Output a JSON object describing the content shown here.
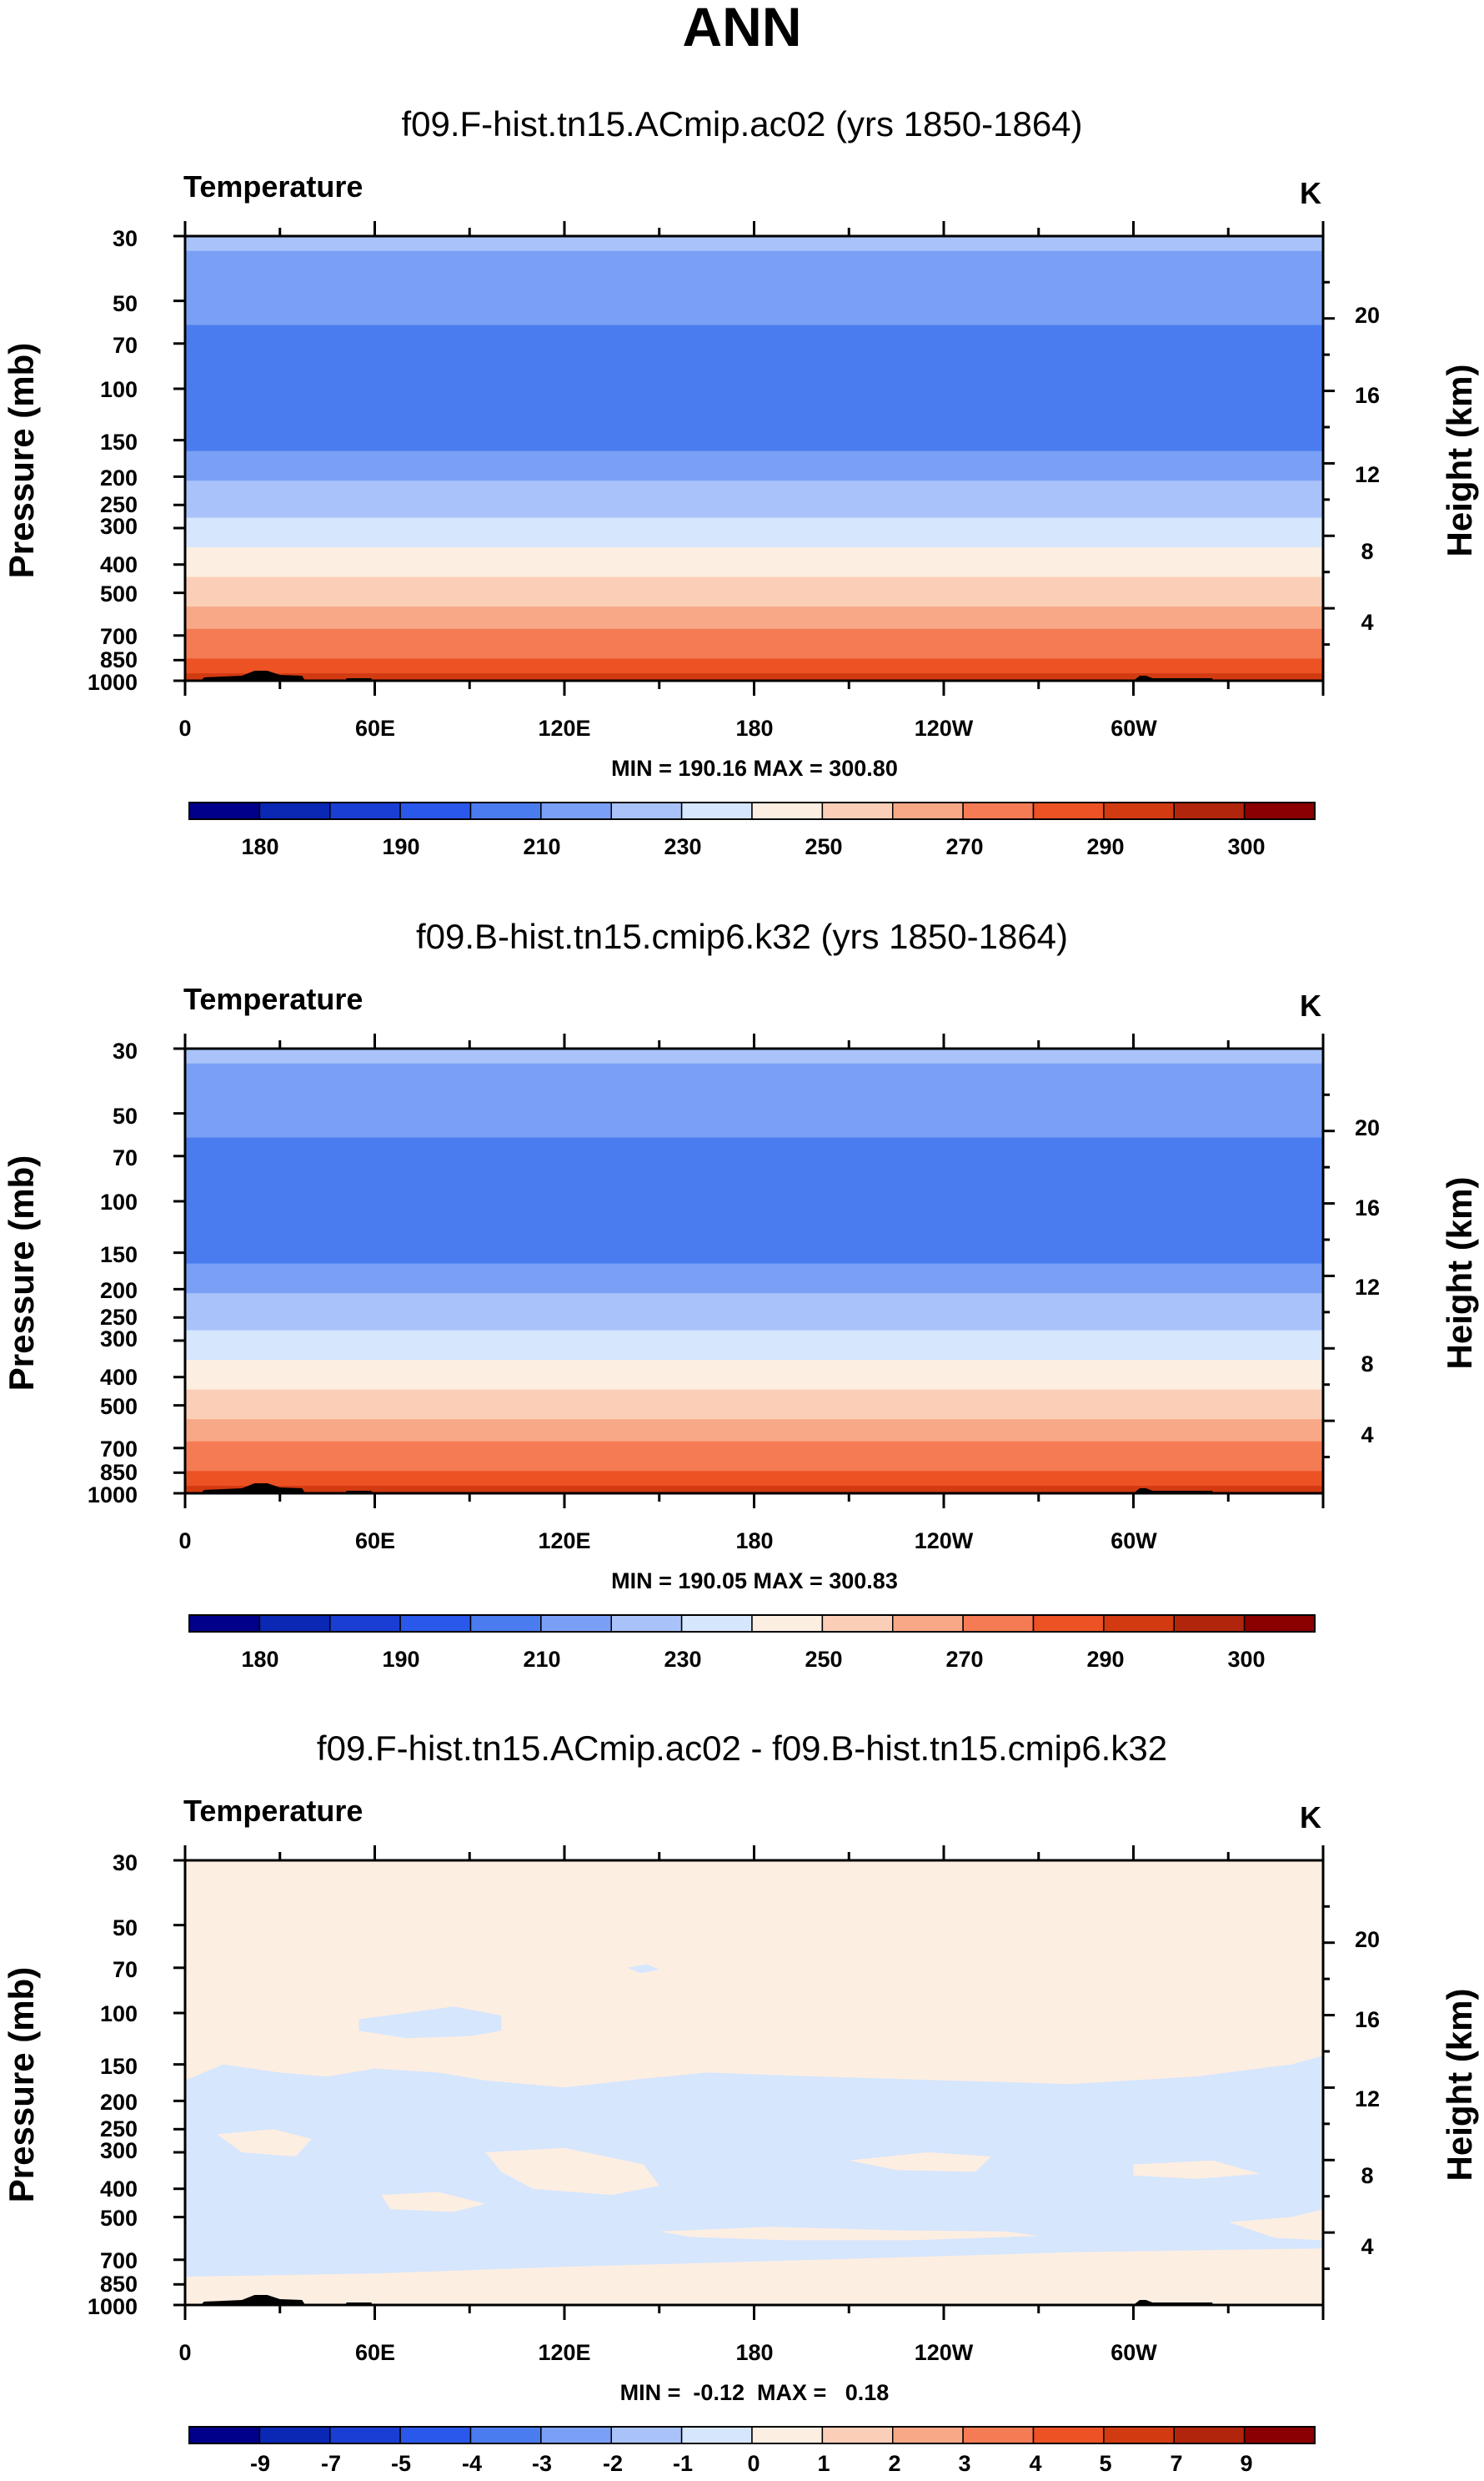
{
  "figure_title": "ANN",
  "colors": {
    "abs_palette": [
      "#00008b",
      "#0a28b4",
      "#1a3ed4",
      "#2a58eb",
      "#4a7cf0",
      "#7aa0f6",
      "#a9c3fa",
      "#d6e6fd",
      "#fdeee2",
      "#fbcfb7",
      "#f8a886",
      "#f47b53",
      "#ec5224",
      "#d23a12",
      "#b1250c",
      "#8b0000"
    ],
    "diff_palette": [
      "#00008b",
      "#0a28b4",
      "#1a3ed4",
      "#2a58eb",
      "#4a7cf0",
      "#7aa0f6",
      "#a9c3fa",
      "#d6e6fd",
      "#fdeee2",
      "#fbcfb7",
      "#f8a886",
      "#f47b53",
      "#ec5224",
      "#d23a12",
      "#b1250c",
      "#8b0000"
    ],
    "terrain": "#000000"
  },
  "chart_data": [
    {
      "type": "heatmap",
      "title": "f09.F-hist.tn15.ACmip.ac02 (yrs 1850-1864)",
      "left_label": "Temperature",
      "units": "K",
      "ylabel": "Pressure (mb)",
      "y2label": "Height (km)",
      "x_ticks": [
        "0",
        "60E",
        "120E",
        "180",
        "120W",
        "60W"
      ],
      "x_range": [
        0,
        360
      ],
      "y_ticks": [
        "30",
        "50",
        "70",
        "100",
        "150",
        "200",
        "250",
        "300",
        "400",
        "500",
        "700",
        "850",
        "1000"
      ],
      "y_range_mb": [
        30,
        1000
      ],
      "y2_ticks": [
        "20",
        "16",
        "12",
        "8",
        "4"
      ],
      "minmax": "MIN = 190.16  MAX = 300.80",
      "colorbar_labels": [
        "180",
        "190",
        "210",
        "230",
        "250",
        "270",
        "290",
        "300"
      ],
      "profile_levels": [
        30,
        50,
        70,
        100,
        150,
        200,
        250,
        300,
        400,
        500,
        700,
        850,
        1000
      ],
      "profile_temps": [
        222,
        215,
        206,
        200,
        208,
        218,
        226,
        232,
        245,
        256,
        272,
        282,
        295
      ]
    },
    {
      "type": "heatmap",
      "title": "f09.B-hist.tn15.cmip6.k32 (yrs 1850-1864)",
      "left_label": "Temperature",
      "units": "K",
      "ylabel": "Pressure (mb)",
      "y2label": "Height (km)",
      "x_ticks": [
        "0",
        "60E",
        "120E",
        "180",
        "120W",
        "60W"
      ],
      "x_range": [
        0,
        360
      ],
      "y_ticks": [
        "30",
        "50",
        "70",
        "100",
        "150",
        "200",
        "250",
        "300",
        "400",
        "500",
        "700",
        "850",
        "1000"
      ],
      "y_range_mb": [
        30,
        1000
      ],
      "y2_ticks": [
        "20",
        "16",
        "12",
        "8",
        "4"
      ],
      "minmax": "MIN = 190.05  MAX = 300.83",
      "colorbar_labels": [
        "180",
        "190",
        "210",
        "230",
        "250",
        "270",
        "290",
        "300"
      ],
      "profile_levels": [
        30,
        50,
        70,
        100,
        150,
        200,
        250,
        300,
        400,
        500,
        700,
        850,
        1000
      ],
      "profile_temps": [
        222,
        215,
        206,
        200,
        208,
        218,
        226,
        232,
        245,
        256,
        272,
        282,
        295
      ]
    },
    {
      "type": "heatmap",
      "title": "f09.F-hist.tn15.ACmip.ac02 - f09.B-hist.tn15.cmip6.k32",
      "left_label": "Temperature",
      "units": "K",
      "ylabel": "Pressure (mb)",
      "y2label": "Height (km)",
      "x_ticks": [
        "0",
        "60E",
        "120E",
        "180",
        "120W",
        "60W"
      ],
      "x_range": [
        0,
        360
      ],
      "y_ticks": [
        "30",
        "50",
        "70",
        "100",
        "150",
        "200",
        "250",
        "300",
        "400",
        "500",
        "700",
        "850",
        "1000"
      ],
      "y_range_mb": [
        30,
        1000
      ],
      "y2_ticks": [
        "20",
        "16",
        "12",
        "8",
        "4"
      ],
      "minmax": "MIN =  -0.12  MAX =   0.18",
      "colorbar_labels": [
        "-9",
        "-7",
        "-5",
        "-4",
        "-3",
        "-2",
        "-1",
        "0",
        "1",
        "2",
        "3",
        "4",
        "5",
        "7",
        "9"
      ]
    }
  ]
}
